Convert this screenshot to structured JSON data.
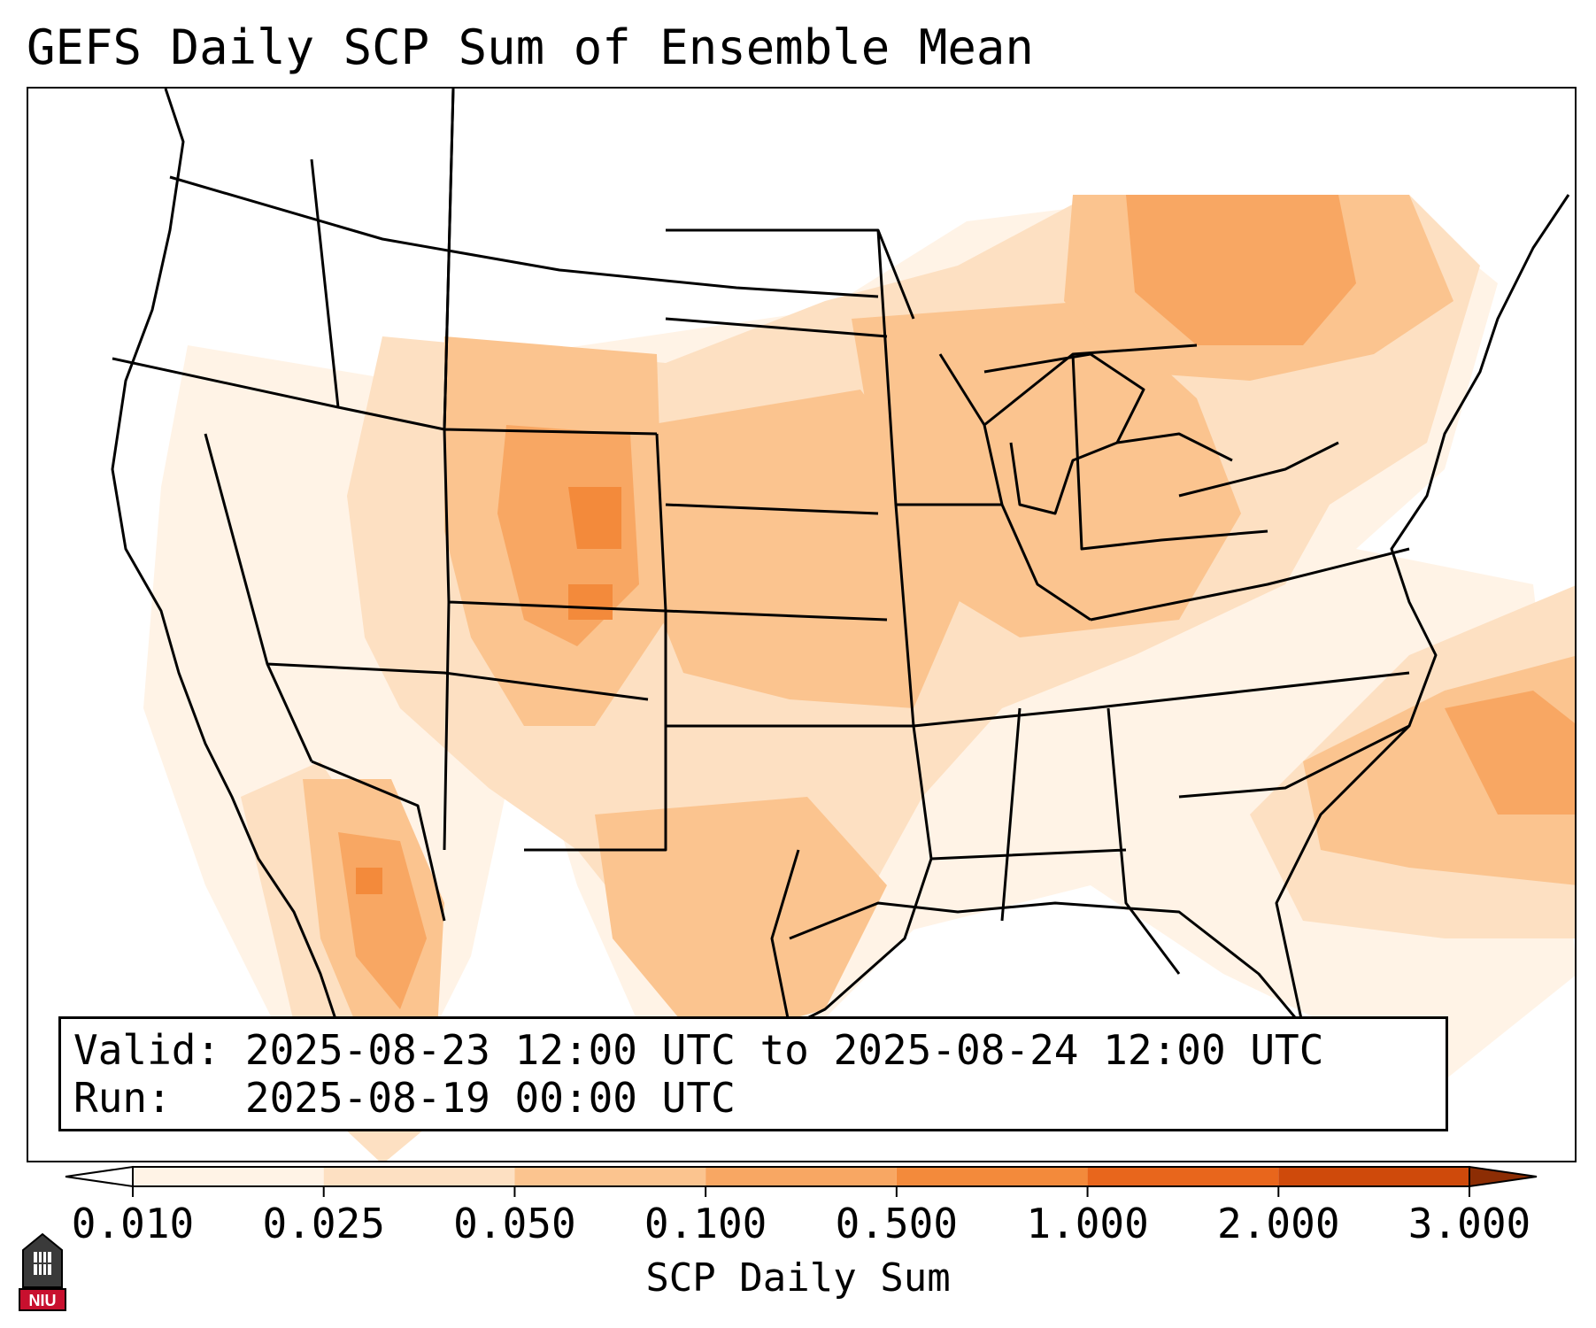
{
  "title": "GEFS Daily SCP Sum of Ensemble Mean",
  "info": {
    "valid_label": "Valid:",
    "valid_text": "2025-08-23 12:00 UTC to 2025-08-24 12:00 UTC",
    "run_label": "Run:",
    "run_text": "2025-08-19 00:00 UTC"
  },
  "colorbar": {
    "label": "SCP Daily Sum",
    "ticks": [
      "0.010",
      "0.025",
      "0.050",
      "0.100",
      "0.500",
      "1.000",
      "2.000",
      "3.000"
    ],
    "colors": [
      "#fff3e6",
      "#fde0c2",
      "#fbc48f",
      "#f8a763",
      "#f38a3b",
      "#e8661c",
      "#cf4a0b",
      "#a63603"
    ],
    "under_color": "#ffffff",
    "over_color": "#8c2d04"
  },
  "logo": {
    "text": "NIU",
    "accent": "#c8102e"
  },
  "colors": {
    "border": "#000000",
    "background": "#ffffff"
  }
}
